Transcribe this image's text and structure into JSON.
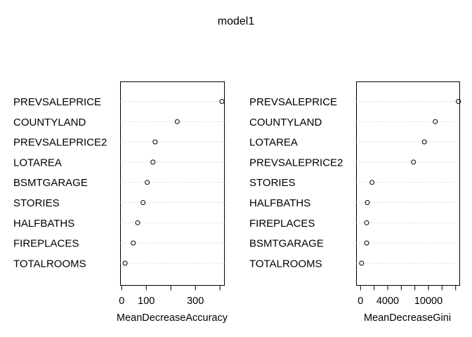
{
  "chart_data": [
    {
      "type": "dotchart",
      "title": "model1",
      "xlabel": "MeanDecreaseAccuracy",
      "categories": [
        "PREVSALEPRICE",
        "COUNTYLAND",
        "PREVSALEPRICE2",
        "LOTAREA",
        "BSMTGARAGE",
        "STORIES",
        "HALFBATHS",
        "FIREPLACES",
        "TOTALROOMS"
      ],
      "values": [
        408,
        226,
        136,
        127,
        104,
        87,
        65,
        47,
        14
      ],
      "xlim": [
        -5,
        418
      ],
      "ticks": [
        0,
        100,
        200,
        300,
        400
      ],
      "tick_labels": [
        "0",
        "100",
        "",
        "300",
        ""
      ],
      "grid": "dotted guide lines per row"
    },
    {
      "type": "dotchart",
      "xlabel": "MeanDecreaseGini",
      "categories": [
        "PREVSALEPRICE",
        "COUNTYLAND",
        "LOTAREA",
        "PREVSALEPRICE2",
        "STORIES",
        "HALFBATHS",
        "FIREPLACES",
        "BSMTGARAGE",
        "TOTALROOMS"
      ],
      "values": [
        14400,
        11000,
        9400,
        7800,
        1700,
        1000,
        900,
        900,
        150
      ],
      "xlim": [
        -600,
        14600
      ],
      "ticks": [
        0,
        2000,
        4000,
        6000,
        8000,
        10000,
        12000,
        14000
      ],
      "tick_labels": [
        "0",
        "",
        "4000",
        "",
        "",
        "10000",
        "",
        ""
      ],
      "grid": "dotted guide lines per row"
    }
  ]
}
